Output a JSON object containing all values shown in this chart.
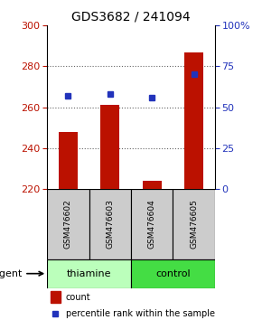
{
  "title": "GDS3682 / 241094",
  "samples": [
    "GSM476602",
    "GSM476603",
    "GSM476604",
    "GSM476605"
  ],
  "count_values": [
    248,
    261,
    224,
    287
  ],
  "count_baseline": 220,
  "percentile_values": [
    57,
    58,
    56,
    70
  ],
  "left_ylim": [
    220,
    300
  ],
  "right_ylim": [
    0,
    100
  ],
  "left_yticks": [
    220,
    240,
    260,
    280,
    300
  ],
  "right_yticks": [
    0,
    25,
    50,
    75,
    100
  ],
  "right_yticklabels": [
    "0",
    "25",
    "50",
    "75",
    "100%"
  ],
  "bar_color": "#bb1100",
  "dot_color": "#2233bb",
  "groups": [
    {
      "label": "thiamine",
      "samples": [
        0,
        1
      ],
      "color": "#bbffbb"
    },
    {
      "label": "control",
      "samples": [
        2,
        3
      ],
      "color": "#44dd44"
    }
  ],
  "group_header_color": "#cccccc",
  "grid_color": "#666666",
  "background_color": "#ffffff"
}
